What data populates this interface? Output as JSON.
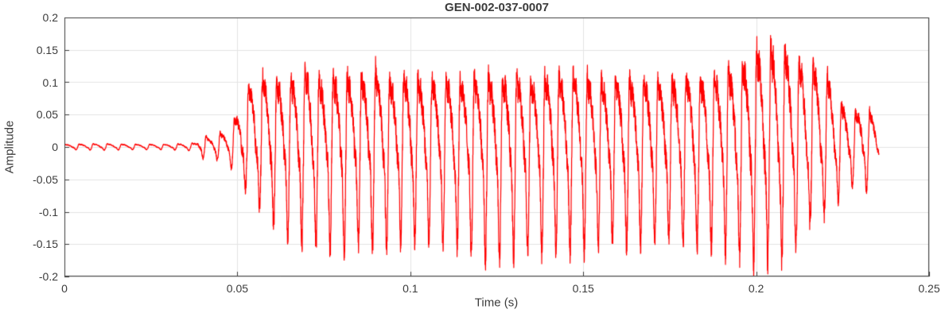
{
  "chart_data": {
    "type": "line",
    "title": "GEN-002-037-0007",
    "xlabel": "Time (s)",
    "ylabel": "Amplitude",
    "xlim": [
      0,
      0.25
    ],
    "ylim": [
      -0.2,
      0.2
    ],
    "xticks": [
      0,
      0.05,
      0.1,
      0.15,
      0.2,
      0.25
    ],
    "xtick_labels": [
      "0",
      "0.05",
      "0.1",
      "0.15",
      "0.2",
      "0.25"
    ],
    "yticks": [
      -0.2,
      -0.15,
      -0.1,
      -0.05,
      0,
      0.05,
      0.1,
      0.15,
      0.2
    ],
    "ytick_labels": [
      "-0.2",
      "-0.15",
      "-0.1",
      "-0.05",
      "0",
      "0.05",
      "0.1",
      "0.15",
      "0.2"
    ],
    "grid": true,
    "legend": "none",
    "line_color": "#ff0000",
    "grid_color": "#e4e4e4",
    "axis_color": "#3c3c3c",
    "text_color": "#3b3b3b",
    "background_color": "#ffffff",
    "signal": {
      "t_start": 0,
      "t_end": 0.2355,
      "fundamental_hz": 245,
      "harmonic_amplitudes": [
        1,
        0.5,
        0.3,
        0.15
      ],
      "harmonic_phases": [
        0,
        0.8,
        1.6,
        2.4
      ],
      "noise_fraction": 0.15,
      "envelope": [
        [
          0.0,
          0.004,
          -0.004
        ],
        [
          0.01,
          0.005,
          -0.005
        ],
        [
          0.02,
          0.004,
          -0.004
        ],
        [
          0.03,
          0.004,
          -0.004
        ],
        [
          0.038,
          0.006,
          -0.006
        ],
        [
          0.04,
          0.022,
          -0.018
        ],
        [
          0.042,
          0.012,
          -0.012
        ],
        [
          0.044,
          0.025,
          -0.02
        ],
        [
          0.046,
          0.02,
          -0.025
        ],
        [
          0.048,
          0.03,
          -0.03
        ],
        [
          0.05,
          0.05,
          -0.045
        ],
        [
          0.053,
          0.09,
          -0.07
        ],
        [
          0.056,
          0.11,
          -0.09
        ],
        [
          0.06,
          0.105,
          -0.12
        ],
        [
          0.065,
          0.1,
          -0.14
        ],
        [
          0.07,
          0.12,
          -0.15
        ],
        [
          0.075,
          0.1,
          -0.155
        ],
        [
          0.08,
          0.11,
          -0.16
        ],
        [
          0.085,
          0.105,
          -0.155
        ],
        [
          0.09,
          0.12,
          -0.16
        ],
        [
          0.095,
          0.1,
          -0.15
        ],
        [
          0.1,
          0.11,
          -0.145
        ],
        [
          0.105,
          0.1,
          -0.15
        ],
        [
          0.11,
          0.105,
          -0.155
        ],
        [
          0.115,
          0.1,
          -0.16
        ],
        [
          0.12,
          0.11,
          -0.17
        ],
        [
          0.125,
          0.105,
          -0.175
        ],
        [
          0.13,
          0.11,
          -0.17
        ],
        [
          0.135,
          0.1,
          -0.165
        ],
        [
          0.14,
          0.11,
          -0.16
        ],
        [
          0.145,
          0.105,
          -0.165
        ],
        [
          0.15,
          0.11,
          -0.16
        ],
        [
          0.155,
          0.1,
          -0.155
        ],
        [
          0.16,
          0.105,
          -0.15
        ],
        [
          0.165,
          0.1,
          -0.155
        ],
        [
          0.17,
          0.105,
          -0.15
        ],
        [
          0.175,
          0.1,
          -0.145
        ],
        [
          0.18,
          0.11,
          -0.15
        ],
        [
          0.185,
          0.105,
          -0.155
        ],
        [
          0.19,
          0.11,
          -0.16
        ],
        [
          0.195,
          0.12,
          -0.17
        ],
        [
          0.2,
          0.15,
          -0.18
        ],
        [
          0.205,
          0.155,
          -0.175
        ],
        [
          0.21,
          0.145,
          -0.165
        ],
        [
          0.215,
          0.13,
          -0.12
        ],
        [
          0.22,
          0.12,
          -0.1
        ],
        [
          0.224,
          0.07,
          -0.08
        ],
        [
          0.228,
          0.05,
          -0.06
        ],
        [
          0.231,
          0.06,
          -0.07
        ],
        [
          0.234,
          0.05,
          -0.06
        ],
        [
          0.2355,
          0.02,
          -0.03
        ]
      ]
    }
  }
}
